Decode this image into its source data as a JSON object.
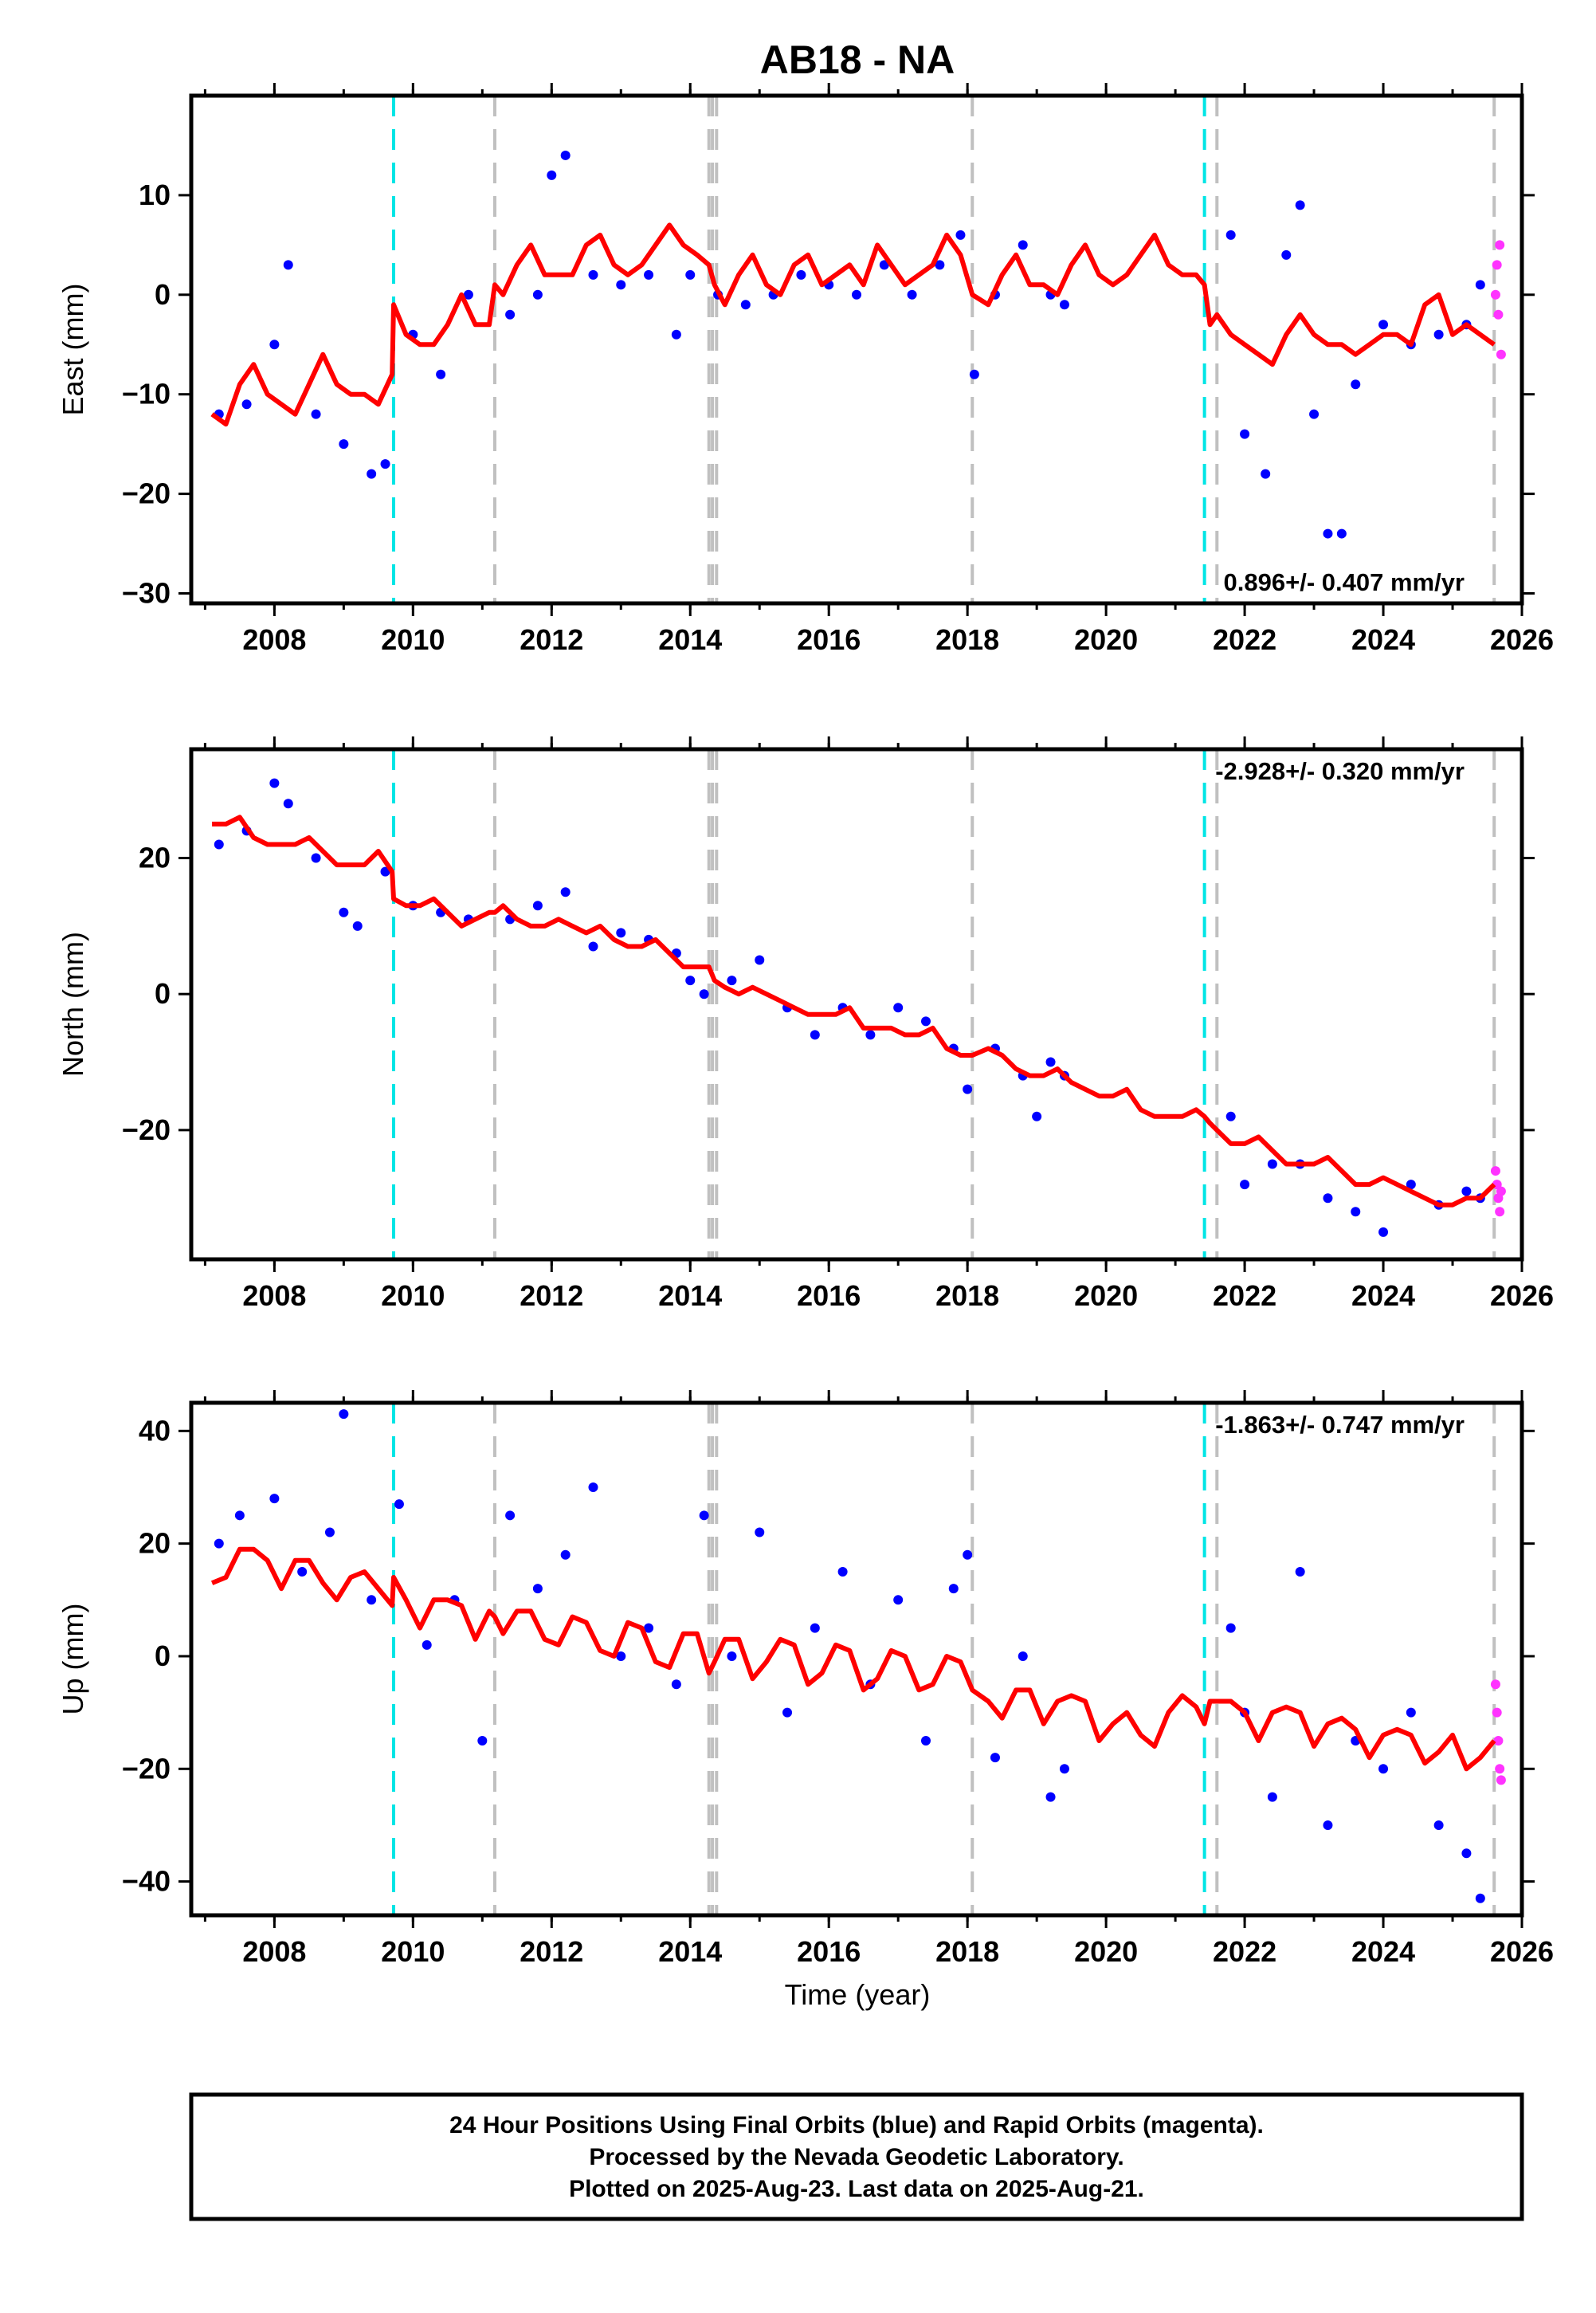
{
  "title": "AB18 - NA",
  "colors": {
    "final_orbits": "#0000ff",
    "rapid_orbits": "#ff33ff",
    "model": "#ff0000",
    "antenna_change_marker": "#00e5e5",
    "event_marker": "#c0c0c0",
    "frame": "#000000"
  },
  "caption": {
    "line1": "24 Hour Positions Using Final Orbits (blue) and Rapid Orbits (magenta).",
    "line2": "Processed by the Nevada Geodetic Laboratory.",
    "line3": "Plotted on 2025-Aug-23. Last data on 2025-Aug-21."
  },
  "chart_data": [
    {
      "type": "scatter",
      "panel": "east",
      "title": "AB18 - NA",
      "ylabel": "East (mm)",
      "xlabel": "",
      "xlim": [
        2006.8,
        2026.0
      ],
      "ylim": [
        -31,
        20
      ],
      "yticks": [
        -30,
        -20,
        -10,
        0,
        10
      ],
      "xticks": [
        2008,
        2010,
        2012,
        2014,
        2016,
        2018,
        2020,
        2022,
        2024,
        2026
      ],
      "rate_text": "0.896+/- 0.407 mm/yr",
      "rate_position": "bottom-right",
      "markers_cyan": [
        2009.72,
        2021.42
      ],
      "markers_gray": [
        2011.18,
        2014.27,
        2014.32,
        2014.38,
        2018.07,
        2021.6,
        2025.6
      ],
      "model": {
        "name": "model",
        "x": [
          2007.1,
          2007.3,
          2007.5,
          2007.7,
          2007.9,
          2008.1,
          2008.3,
          2008.5,
          2008.7,
          2008.9,
          2009.1,
          2009.3,
          2009.5,
          2009.7,
          2009.72,
          2009.9,
          2010.1,
          2010.3,
          2010.5,
          2010.7,
          2010.9,
          2011.1,
          2011.18,
          2011.3,
          2011.5,
          2011.7,
          2011.9,
          2012.1,
          2012.3,
          2012.5,
          2012.7,
          2012.9,
          2013.1,
          2013.3,
          2013.5,
          2013.7,
          2013.9,
          2014.1,
          2014.27,
          2014.35,
          2014.5,
          2014.7,
          2014.9,
          2015.1,
          2015.3,
          2015.5,
          2015.7,
          2015.9,
          2016.1,
          2016.3,
          2016.5,
          2016.7,
          2016.9,
          2017.1,
          2017.3,
          2017.5,
          2017.7,
          2017.9,
          2018.07,
          2018.3,
          2018.5,
          2018.7,
          2018.9,
          2019.1,
          2019.3,
          2019.5,
          2019.7,
          2019.9,
          2020.1,
          2020.3,
          2020.5,
          2020.7,
          2020.9,
          2021.1,
          2021.3,
          2021.42,
          2021.5,
          2021.6,
          2021.8,
          2022.0,
          2022.2,
          2022.4,
          2022.6,
          2022.8,
          2023.0,
          2023.2,
          2023.4,
          2023.6,
          2023.8,
          2024.0,
          2024.2,
          2024.4,
          2024.6,
          2024.8,
          2025.0,
          2025.2,
          2025.4,
          2025.6
        ],
        "y": [
          -12,
          -13,
          -9,
          -7,
          -10,
          -11,
          -12,
          -9,
          -6,
          -9,
          -10,
          -10,
          -11,
          -8,
          -1,
          -4,
          -5,
          -5,
          -3,
          0,
          -3,
          -3,
          1,
          0,
          3,
          5,
          2,
          2,
          2,
          5,
          6,
          3,
          2,
          3,
          5,
          7,
          5,
          4,
          3,
          1,
          -1,
          2,
          4,
          1,
          0,
          3,
          4,
          1,
          2,
          3,
          1,
          5,
          3,
          1,
          2,
          3,
          6,
          4,
          0,
          -1,
          2,
          4,
          1,
          1,
          0,
          3,
          5,
          2,
          1,
          2,
          4,
          6,
          3,
          2,
          2,
          1,
          -3,
          -2,
          -4,
          -5,
          -6,
          -7,
          -4,
          -2,
          -4,
          -5,
          -5,
          -6,
          -5,
          -4,
          -4,
          -5,
          -1,
          0,
          -4,
          -3,
          -4,
          -5
        ]
      },
      "series": [
        {
          "name": "Final Orbits",
          "x": [
            2007.2,
            2007.6,
            2008.0,
            2008.2,
            2008.6,
            2009.0,
            2009.4,
            2009.6,
            2010.0,
            2010.4,
            2010.8,
            2011.4,
            2011.8,
            2012.0,
            2012.2,
            2012.6,
            2013.0,
            2013.4,
            2013.8,
            2014.0,
            2014.4,
            2014.8,
            2015.2,
            2015.6,
            2016.0,
            2016.4,
            2016.8,
            2017.2,
            2017.6,
            2017.9,
            2018.1,
            2018.4,
            2018.8,
            2019.2,
            2019.4,
            2021.8,
            2022.0,
            2022.3,
            2022.6,
            2022.8,
            2023.0,
            2023.2,
            2023.4,
            2023.6,
            2024.0,
            2024.4,
            2024.8,
            2025.2,
            2025.4
          ],
          "y": [
            -12,
            -11,
            -5,
            3,
            -12,
            -15,
            -18,
            -17,
            -4,
            -8,
            0,
            -2,
            0,
            12,
            14,
            2,
            1,
            2,
            -4,
            2,
            0,
            -1,
            0,
            2,
            1,
            0,
            3,
            0,
            3,
            6,
            -8,
            0,
            5,
            0,
            -1,
            6,
            -14,
            -18,
            4,
            9,
            -12,
            -24,
            -24,
            -9,
            -3,
            -5,
            -4,
            -3,
            1
          ]
        },
        {
          "name": "Rapid Orbits",
          "x": [
            2025.62,
            2025.64,
            2025.66,
            2025.68,
            2025.7
          ],
          "y": [
            0,
            3,
            -2,
            5,
            -6
          ]
        }
      ]
    },
    {
      "type": "scatter",
      "panel": "north",
      "ylabel": "North (mm)",
      "xlabel": "",
      "xlim": [
        2006.8,
        2026.0
      ],
      "ylim": [
        -39,
        36
      ],
      "yticks": [
        -20,
        0,
        20
      ],
      "xticks": [
        2008,
        2010,
        2012,
        2014,
        2016,
        2018,
        2020,
        2022,
        2024,
        2026
      ],
      "rate_text": "-2.928+/- 0.320 mm/yr",
      "rate_position": "top-right",
      "markers_cyan": [
        2009.72,
        2021.42
      ],
      "markers_gray": [
        2011.18,
        2014.27,
        2014.32,
        2014.38,
        2018.07,
        2021.6,
        2025.6
      ],
      "model": {
        "name": "model",
        "x": [
          2007.1,
          2007.3,
          2007.5,
          2007.7,
          2007.9,
          2008.1,
          2008.3,
          2008.5,
          2008.7,
          2008.9,
          2009.1,
          2009.3,
          2009.5,
          2009.7,
          2009.72,
          2009.9,
          2010.1,
          2010.3,
          2010.5,
          2010.7,
          2010.9,
          2011.1,
          2011.18,
          2011.3,
          2011.5,
          2011.7,
          2011.9,
          2012.1,
          2012.3,
          2012.5,
          2012.7,
          2012.9,
          2013.1,
          2013.3,
          2013.5,
          2013.7,
          2013.9,
          2014.1,
          2014.27,
          2014.35,
          2014.5,
          2014.7,
          2014.9,
          2015.1,
          2015.3,
          2015.5,
          2015.7,
          2015.9,
          2016.1,
          2016.3,
          2016.5,
          2016.7,
          2016.9,
          2017.1,
          2017.3,
          2017.5,
          2017.7,
          2017.9,
          2018.07,
          2018.3,
          2018.5,
          2018.7,
          2018.9,
          2019.1,
          2019.3,
          2019.5,
          2019.7,
          2019.9,
          2020.1,
          2020.3,
          2020.5,
          2020.7,
          2020.9,
          2021.1,
          2021.3,
          2021.42,
          2021.5,
          2021.6,
          2021.8,
          2022.0,
          2022.2,
          2022.4,
          2022.6,
          2022.8,
          2023.0,
          2023.2,
          2023.4,
          2023.6,
          2023.8,
          2024.0,
          2024.2,
          2024.4,
          2024.6,
          2024.8,
          2025.0,
          2025.2,
          2025.4,
          2025.6
        ],
        "y": [
          25,
          25,
          26,
          23,
          22,
          22,
          22,
          23,
          21,
          19,
          19,
          19,
          21,
          18,
          14,
          13,
          13,
          14,
          12,
          10,
          11,
          12,
          12,
          13,
          11,
          10,
          10,
          11,
          10,
          9,
          10,
          8,
          7,
          7,
          8,
          6,
          4,
          4,
          4,
          2,
          1,
          0,
          1,
          0,
          -1,
          -2,
          -3,
          -3,
          -3,
          -2,
          -5,
          -5,
          -5,
          -6,
          -6,
          -5,
          -8,
          -9,
          -9,
          -8,
          -9,
          -11,
          -12,
          -12,
          -11,
          -13,
          -14,
          -15,
          -15,
          -14,
          -17,
          -18,
          -18,
          -18,
          -17,
          -18,
          -19,
          -20,
          -22,
          -22,
          -21,
          -23,
          -25,
          -25,
          -25,
          -24,
          -26,
          -28,
          -28,
          -27,
          -28,
          -29,
          -30,
          -31,
          -31,
          -30,
          -30,
          -28
        ]
      },
      "series": [
        {
          "name": "Final Orbits",
          "x": [
            2007.2,
            2007.6,
            2008.0,
            2008.2,
            2008.6,
            2009.0,
            2009.2,
            2009.6,
            2010.0,
            2010.4,
            2010.8,
            2011.4,
            2011.8,
            2012.2,
            2012.6,
            2013.0,
            2013.4,
            2013.8,
            2014.0,
            2014.2,
            2014.6,
            2015.0,
            2015.4,
            2015.8,
            2016.2,
            2016.6,
            2017.0,
            2017.4,
            2017.8,
            2018.0,
            2018.4,
            2018.8,
            2019.0,
            2019.2,
            2019.4,
            2021.8,
            2022.0,
            2022.4,
            2022.8,
            2023.2,
            2023.6,
            2024.0,
            2024.4,
            2024.8,
            2025.2,
            2025.4
          ],
          "y": [
            22,
            24,
            31,
            28,
            20,
            12,
            10,
            18,
            13,
            12,
            11,
            11,
            13,
            15,
            7,
            9,
            8,
            6,
            2,
            0,
            2,
            5,
            -2,
            -6,
            -2,
            -6,
            -2,
            -4,
            -8,
            -14,
            -8,
            -12,
            -18,
            -10,
            -12,
            -18,
            -28,
            -25,
            -25,
            -30,
            -32,
            -35,
            -28,
            -31,
            -29,
            -30
          ]
        },
        {
          "name": "Rapid Orbits",
          "x": [
            2025.62,
            2025.64,
            2025.66,
            2025.68,
            2025.7
          ],
          "y": [
            -26,
            -28,
            -30,
            -32,
            -29
          ]
        }
      ]
    },
    {
      "type": "scatter",
      "panel": "up",
      "ylabel": "Up (mm)",
      "xlabel": "Time (year)",
      "xlim": [
        2006.8,
        2026.0
      ],
      "ylim": [
        -46,
        45
      ],
      "yticks": [
        -40,
        -20,
        0,
        20,
        40
      ],
      "xticks": [
        2008,
        2010,
        2012,
        2014,
        2016,
        2018,
        2020,
        2022,
        2024,
        2026
      ],
      "rate_text": "-1.863+/- 0.747 mm/yr",
      "rate_position": "top-right",
      "markers_cyan": [
        2009.72,
        2021.42
      ],
      "markers_gray": [
        2011.18,
        2014.27,
        2014.32,
        2014.38,
        2018.07,
        2021.6,
        2025.6
      ],
      "model": {
        "name": "model",
        "x": [
          2007.1,
          2007.3,
          2007.5,
          2007.7,
          2007.9,
          2008.1,
          2008.3,
          2008.5,
          2008.7,
          2008.9,
          2009.1,
          2009.3,
          2009.5,
          2009.7,
          2009.72,
          2009.9,
          2010.1,
          2010.3,
          2010.5,
          2010.7,
          2010.9,
          2011.1,
          2011.18,
          2011.3,
          2011.5,
          2011.7,
          2011.9,
          2012.1,
          2012.3,
          2012.5,
          2012.7,
          2012.9,
          2013.1,
          2013.3,
          2013.5,
          2013.7,
          2013.9,
          2014.1,
          2014.27,
          2014.35,
          2014.5,
          2014.7,
          2014.9,
          2015.1,
          2015.3,
          2015.5,
          2015.7,
          2015.9,
          2016.1,
          2016.3,
          2016.5,
          2016.7,
          2016.9,
          2017.1,
          2017.3,
          2017.5,
          2017.7,
          2017.9,
          2018.07,
          2018.3,
          2018.5,
          2018.7,
          2018.9,
          2019.1,
          2019.3,
          2019.5,
          2019.7,
          2019.9,
          2020.1,
          2020.3,
          2020.5,
          2020.7,
          2020.9,
          2021.1,
          2021.3,
          2021.42,
          2021.5,
          2021.6,
          2021.8,
          2022.0,
          2022.2,
          2022.4,
          2022.6,
          2022.8,
          2023.0,
          2023.2,
          2023.4,
          2023.6,
          2023.8,
          2024.0,
          2024.2,
          2024.4,
          2024.6,
          2024.8,
          2025.0,
          2025.2,
          2025.4,
          2025.6
        ],
        "y": [
          13,
          14,
          19,
          19,
          17,
          12,
          17,
          17,
          13,
          10,
          14,
          15,
          12,
          9,
          14,
          10,
          5,
          10,
          10,
          9,
          3,
          8,
          7,
          4,
          8,
          8,
          3,
          2,
          7,
          6,
          1,
          0,
          6,
          5,
          -1,
          -2,
          4,
          4,
          -3,
          -1,
          3,
          3,
          -4,
          -1,
          3,
          2,
          -5,
          -3,
          2,
          1,
          -6,
          -4,
          1,
          0,
          -6,
          -5,
          0,
          -1,
          -6,
          -8,
          -11,
          -6,
          -6,
          -12,
          -8,
          -7,
          -8,
          -15,
          -12,
          -10,
          -14,
          -16,
          -10,
          -7,
          -9,
          -12,
          -8,
          -8,
          -8,
          -10,
          -15,
          -10,
          -9,
          -10,
          -16,
          -12,
          -11,
          -13,
          -18,
          -14,
          -13,
          -14,
          -19,
          -17,
          -14,
          -20,
          -18,
          -15
        ]
      },
      "series": [
        {
          "name": "Final Orbits",
          "x": [
            2007.2,
            2007.5,
            2008.0,
            2008.4,
            2008.8,
            2009.0,
            2009.4,
            2009.8,
            2010.2,
            2010.6,
            2011.0,
            2011.4,
            2011.8,
            2012.2,
            2012.6,
            2013.0,
            2013.4,
            2013.8,
            2014.2,
            2014.6,
            2015.0,
            2015.4,
            2015.8,
            2016.2,
            2016.6,
            2017.0,
            2017.4,
            2017.8,
            2018.0,
            2018.4,
            2018.8,
            2019.2,
            2019.4,
            2021.8,
            2022.0,
            2022.4,
            2022.8,
            2023.2,
            2023.6,
            2024.0,
            2024.4,
            2024.8,
            2025.2,
            2025.4
          ],
          "y": [
            20,
            25,
            28,
            15,
            22,
            43,
            10,
            27,
            2,
            10,
            -15,
            25,
            12,
            18,
            30,
            0,
            5,
            -5,
            25,
            0,
            22,
            -10,
            5,
            15,
            -5,
            10,
            -15,
            12,
            18,
            -18,
            0,
            -25,
            -20,
            5,
            -10,
            -25,
            15,
            -30,
            -15,
            -20,
            -10,
            -30,
            -35,
            -43
          ]
        },
        {
          "name": "Rapid Orbits",
          "x": [
            2025.62,
            2025.64,
            2025.66,
            2025.68,
            2025.7
          ],
          "y": [
            -5,
            -10,
            -15,
            -20,
            -22
          ]
        }
      ]
    }
  ]
}
